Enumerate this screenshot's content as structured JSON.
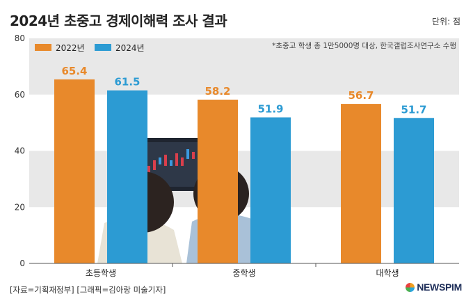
{
  "title": "2024년 초중고 경제이해력 조사 결과",
  "unit_label": "단위: 점",
  "note": "*초중고 학생 총 1만5000명 대상, 한국갤럽조사연구소 수행",
  "source": "[자료=기획재정부] [그래픽=김아랑 미술기자]",
  "logo": "NEWSPIM",
  "colors": {
    "y2022": "#e8892b",
    "y2024": "#2c9bd3",
    "band": "#e8e8e8"
  },
  "chart_data": {
    "type": "bar",
    "categories": [
      "초등학생",
      "중학생",
      "대학생"
    ],
    "series": [
      {
        "name": "2022년",
        "values": [
          65.4,
          58.2,
          56.7
        ]
      },
      {
        "name": "2024년",
        "values": [
          61.5,
          51.9,
          51.7
        ]
      }
    ],
    "data_labels": [
      [
        "65.4",
        "58.2",
        "56.7"
      ],
      [
        "61.5",
        "51.9",
        "51.7"
      ]
    ],
    "yticks": [
      "0",
      "20",
      "40",
      "60",
      "80"
    ],
    "ylim": [
      0,
      80
    ],
    "legend": "top-left"
  }
}
